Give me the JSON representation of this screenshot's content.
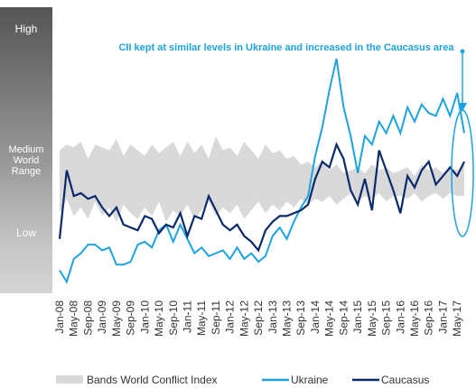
{
  "chart_data": {
    "type": "line",
    "annotation": "CII kept at similar levels in Ukraine and increased in the Caucasus area",
    "scale_labels": [
      "High",
      "Medium World Range",
      "Low"
    ],
    "categories": [
      "Jan-08",
      null,
      "May-08",
      null,
      "Sep-08",
      null,
      "Jan-09",
      null,
      "May-09",
      null,
      "Sep-09",
      null,
      "Jan-10",
      null,
      "May-10",
      null,
      "Sep-10",
      null,
      "Jan-11",
      null,
      "May-11",
      null,
      "Sep-11",
      null,
      "Jan-12",
      null,
      "May-12",
      null,
      "Sep-12",
      null,
      "Jan-13",
      null,
      "May-13",
      null,
      "Sep-13",
      null,
      "Jan-14",
      null,
      "May-14",
      null,
      "Sep-14",
      null,
      "Jan-15",
      null,
      "May-15",
      null,
      "Sep-15",
      null,
      "Jan-16",
      null,
      "May-16",
      null,
      "Sep-16",
      null,
      "Jan-17",
      null,
      "May-17",
      null
    ],
    "ylim": [
      0,
      100
    ],
    "band": {
      "name": "Bands World Conflict Index",
      "color": "#d9d9d9",
      "upper": [
        50,
        52,
        51,
        53,
        47,
        52,
        51,
        50,
        54,
        48,
        52,
        50,
        48,
        52,
        49,
        51,
        53,
        48,
        53,
        49,
        52,
        47,
        55,
        50,
        51,
        48,
        53,
        50,
        47,
        52,
        49,
        50,
        47,
        48,
        45,
        46,
        44,
        46,
        43,
        45,
        42,
        43,
        44,
        42,
        45,
        43,
        44,
        42,
        43,
        44,
        41,
        45,
        43,
        44,
        42,
        44,
        43,
        45
      ],
      "lower": [
        28,
        33,
        27,
        30,
        26,
        32,
        27,
        30,
        25,
        31,
        28,
        26,
        30,
        27,
        32,
        25,
        29,
        27,
        31,
        26,
        29,
        32,
        27,
        30,
        28,
        31,
        26,
        29,
        32,
        28,
        31,
        29,
        32,
        30,
        33,
        31,
        33,
        32,
        34,
        31,
        33,
        35,
        32,
        34,
        33,
        35,
        32,
        34,
        34,
        33,
        35,
        32,
        34,
        35,
        33,
        35,
        34,
        34
      ]
    },
    "series": [
      {
        "name": "Ukraine",
        "color": "#1fa3e0",
        "values": [
          8,
          4,
          12,
          14,
          17,
          17,
          15,
          16,
          10,
          10,
          11,
          17,
          18,
          16,
          22,
          24,
          18,
          24,
          19,
          14,
          16,
          13,
          14,
          15,
          12,
          16,
          12,
          14,
          11,
          13,
          20,
          23,
          19,
          25,
          30,
          34,
          48,
          58,
          71,
          82,
          65,
          55,
          42,
          55,
          52,
          60,
          56,
          62,
          56,
          65,
          60,
          66,
          63,
          62,
          68,
          62,
          70,
          56
        ]
      },
      {
        "name": "Caucasus",
        "color": "#0b2a6b",
        "values": [
          19,
          43,
          34,
          35,
          33,
          34,
          30,
          27,
          30,
          24,
          23,
          22,
          27,
          26,
          21,
          24,
          23,
          28,
          20,
          27,
          26,
          34,
          29,
          24,
          22,
          24,
          20,
          18,
          15,
          22,
          25,
          27,
          27,
          28,
          29,
          31,
          40,
          46,
          44,
          52,
          47,
          36,
          31,
          40,
          29,
          50,
          43,
          36,
          28,
          41,
          37,
          43,
          46,
          38,
          41,
          44,
          41,
          46
        ]
      }
    ]
  }
}
